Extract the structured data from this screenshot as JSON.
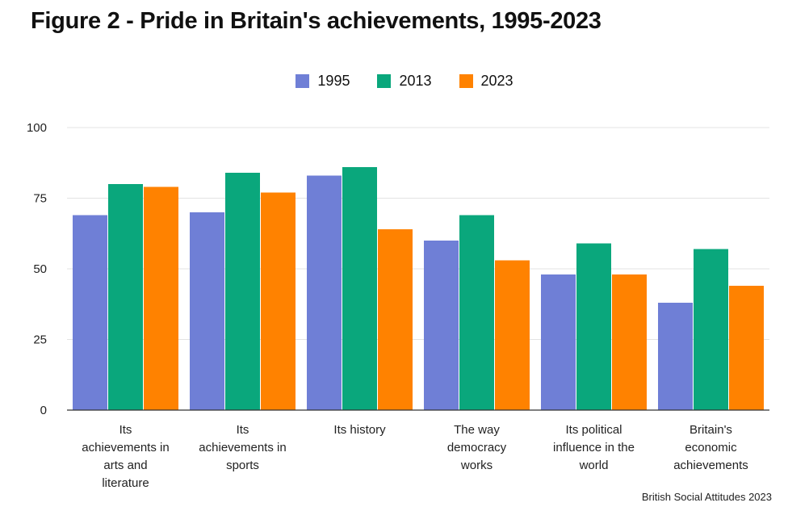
{
  "title": "Figure 2 - Pride in Britain's achievements, 1995-2023",
  "source": "British Social Attitudes 2023",
  "chart_data": {
    "type": "bar",
    "categories": [
      [
        "Its",
        "achievements in",
        "arts and",
        "literature"
      ],
      [
        "Its",
        "achievements in",
        "sports"
      ],
      [
        "Its history"
      ],
      [
        "The way",
        "democracy",
        "works"
      ],
      [
        "Its political",
        "influence in the",
        "world"
      ],
      [
        "Britain's",
        "economic",
        "achievements"
      ]
    ],
    "series": [
      {
        "name": "1995",
        "color": "#6f7fd6",
        "values": [
          69,
          70,
          83,
          60,
          48,
          38
        ]
      },
      {
        "name": "2013",
        "color": "#0aa77c",
        "values": [
          80,
          84,
          86,
          69,
          59,
          57
        ]
      },
      {
        "name": "2023",
        "color": "#ff8200",
        "values": [
          79,
          77,
          64,
          53,
          48,
          44
        ]
      }
    ],
    "ylim": [
      0,
      100
    ],
    "yticks": [
      "0",
      "25",
      "50",
      "75",
      "100"
    ],
    "grid": true,
    "legend": "top-center"
  }
}
